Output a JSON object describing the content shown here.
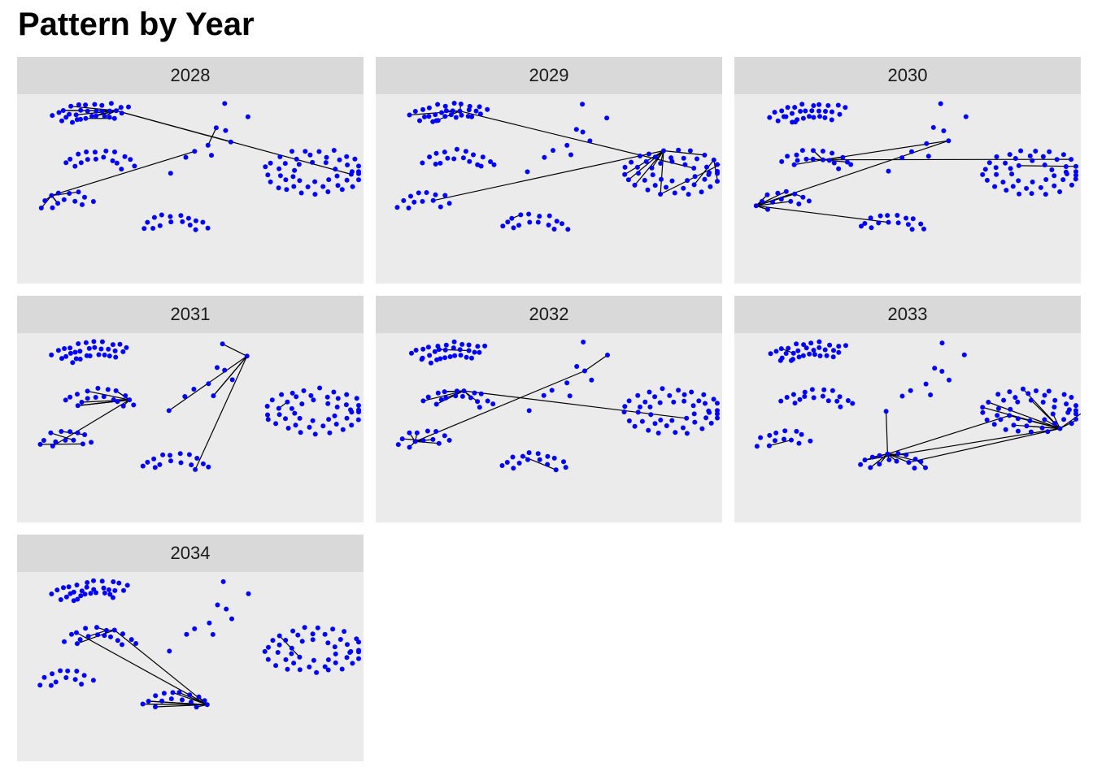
{
  "title": "Pattern by Year",
  "colors": {
    "node": "#0000ff",
    "edge": "#000000",
    "panel_background": "#ebebeb",
    "strip_background": "#d9d9d9"
  },
  "chart_data": {
    "type": "network-facets",
    "facet_variable": "year",
    "facets": [
      "2028",
      "2029",
      "2030",
      "2031",
      "2032",
      "2033",
      "2034"
    ],
    "grid": false,
    "legend": "none",
    "node_color": "#0000ff",
    "edge_color": "#000000"
  }
}
